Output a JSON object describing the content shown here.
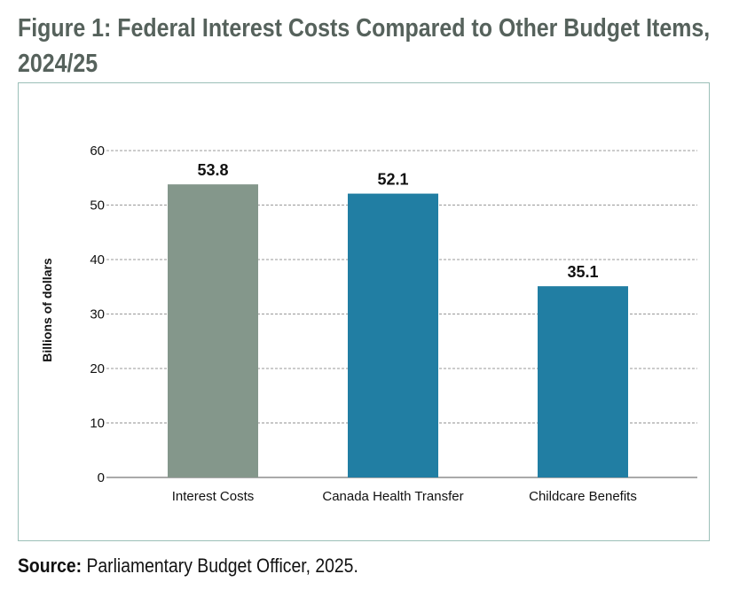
{
  "title": "Figure 1: Federal Interest Costs Compared to Other Budget Items, 2024/25",
  "source": {
    "label": "Source:",
    "text": "Parliamentary Budget Officer, 2025."
  },
  "chart_data": {
    "type": "bar",
    "title": "Figure 1: Federal Interest Costs Compared to Other Budget Items, 2024/25",
    "categories": [
      "Interest Costs",
      "Canada Health Transfer",
      "Childcare Benefits"
    ],
    "values": [
      53.8,
      52.1,
      35.1
    ],
    "data_labels": [
      "53.8",
      "52.1",
      "35.1"
    ],
    "colors": [
      "#84978b",
      "#217ea3",
      "#217ea3"
    ],
    "xlabel": "",
    "ylabel": "Billions of dollars",
    "ylim": [
      0,
      60
    ],
    "yticks": [
      0,
      10,
      20,
      30,
      40,
      50,
      60
    ],
    "grid": true,
    "legend": "none"
  }
}
